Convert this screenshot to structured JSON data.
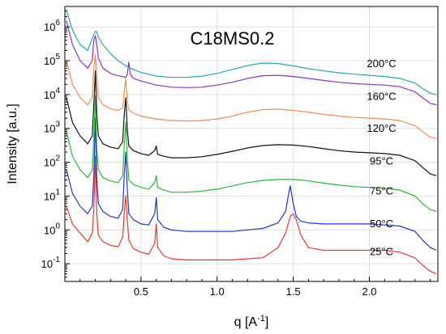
{
  "chart_data": {
    "type": "line",
    "title": "C18MS0.2",
    "xlabel": "q [A",
    "xlabel_sup": "-1",
    "xlabel_end": "]",
    "ylabel": "Intensity [a.u.]",
    "x_scale": "linear",
    "y_scale": "log",
    "xlim": [
      0,
      2.45
    ],
    "ylim": [
      0.03,
      4000000
    ],
    "grid": true,
    "x_ticks": [
      0.5,
      1.0,
      1.5,
      2.0
    ],
    "x_tick_labels": [
      "0.5",
      "1.0",
      "1.5",
      "2.0"
    ],
    "y_ticks": [
      0.1,
      1,
      10,
      100,
      1000,
      10000,
      100000,
      1000000
    ],
    "y_tick_bases": [
      "10",
      "10",
      "10",
      "10",
      "10",
      "10",
      "10",
      "10"
    ],
    "y_tick_exps": [
      "-1",
      "0",
      "1",
      "2",
      "3",
      "4",
      "5",
      "6"
    ],
    "series": [
      {
        "name": "25°C",
        "color": "#e8382e",
        "x": [
          0.01,
          0.05,
          0.1,
          0.15,
          0.18,
          0.19,
          0.2,
          0.21,
          0.22,
          0.25,
          0.3,
          0.35,
          0.38,
          0.39,
          0.4,
          0.41,
          0.42,
          0.45,
          0.5,
          0.55,
          0.59,
          0.6,
          0.61,
          0.65,
          0.7,
          0.8,
          0.9,
          1.0,
          1.1,
          1.2,
          1.3,
          1.4,
          1.45,
          1.48,
          1.5,
          1.52,
          1.55,
          1.6,
          1.7,
          1.8,
          1.9,
          2.0,
          2.1,
          2.2,
          2.3,
          2.35,
          2.4,
          2.44
        ],
        "y": [
          5,
          1.5,
          0.8,
          0.45,
          0.8,
          4,
          150,
          3,
          0.7,
          0.45,
          0.35,
          0.32,
          0.6,
          3,
          10,
          2,
          0.5,
          0.28,
          0.22,
          0.19,
          0.4,
          1.5,
          0.3,
          0.17,
          0.14,
          0.13,
          0.13,
          0.13,
          0.13,
          0.14,
          0.15,
          0.3,
          0.8,
          2.5,
          3,
          2,
          0.7,
          0.3,
          0.25,
          0.25,
          0.25,
          0.25,
          0.25,
          0.22,
          0.15,
          0.09,
          0.06,
          0.05
        ]
      },
      {
        "name": "50°C",
        "color": "#2233cc",
        "x": [
          0.01,
          0.05,
          0.1,
          0.15,
          0.18,
          0.19,
          0.2,
          0.21,
          0.22,
          0.25,
          0.3,
          0.35,
          0.38,
          0.39,
          0.4,
          0.41,
          0.42,
          0.45,
          0.5,
          0.55,
          0.59,
          0.6,
          0.61,
          0.65,
          0.7,
          0.8,
          0.9,
          1.0,
          1.1,
          1.2,
          1.3,
          1.4,
          1.45,
          1.47,
          1.48,
          1.5,
          1.52,
          1.55,
          1.6,
          1.7,
          1.8,
          1.9,
          2.0,
          2.1,
          2.2,
          2.3,
          2.35,
          2.4,
          2.44
        ],
        "y": [
          60,
          12,
          5,
          3,
          5,
          40,
          2000,
          30,
          6,
          3.5,
          2.5,
          2.2,
          4,
          40,
          200,
          15,
          3,
          2,
          1.5,
          1.4,
          3,
          9,
          2,
          1.2,
          1.0,
          0.9,
          0.9,
          0.9,
          0.9,
          1.0,
          1.1,
          1.6,
          3.5,
          12,
          20,
          6,
          2.5,
          1.8,
          1.6,
          1.5,
          1.5,
          1.5,
          1.5,
          1.4,
          1.3,
          0.9,
          0.5,
          0.3,
          0.25
        ]
      },
      {
        "name": "75°C",
        "color": "#22bb33",
        "x": [
          0.01,
          0.05,
          0.1,
          0.15,
          0.18,
          0.19,
          0.2,
          0.21,
          0.22,
          0.25,
          0.3,
          0.35,
          0.38,
          0.39,
          0.4,
          0.41,
          0.42,
          0.45,
          0.5,
          0.55,
          0.59,
          0.6,
          0.61,
          0.65,
          0.7,
          0.8,
          0.9,
          1.0,
          1.1,
          1.2,
          1.3,
          1.4,
          1.5,
          1.6,
          1.7,
          1.8,
          1.9,
          2.0,
          2.1,
          2.2,
          2.3,
          2.35,
          2.4,
          2.44
        ],
        "y": [
          800,
          150,
          60,
          35,
          60,
          500,
          9000,
          250,
          60,
          35,
          28,
          25,
          40,
          300,
          1500,
          120,
          30,
          22,
          18,
          16,
          25,
          40,
          18,
          15,
          13,
          13,
          14,
          16,
          20,
          25,
          29,
          31,
          31,
          28,
          24,
          21,
          19,
          18,
          17,
          15,
          10,
          6,
          4,
          3.5
        ]
      },
      {
        "name": "95°C",
        "color": "#111111",
        "x": [
          0.01,
          0.05,
          0.1,
          0.15,
          0.18,
          0.19,
          0.2,
          0.21,
          0.22,
          0.25,
          0.3,
          0.35,
          0.38,
          0.39,
          0.4,
          0.41,
          0.42,
          0.45,
          0.5,
          0.55,
          0.59,
          0.6,
          0.61,
          0.65,
          0.7,
          0.8,
          0.9,
          1.0,
          1.1,
          1.2,
          1.3,
          1.4,
          1.5,
          1.6,
          1.7,
          1.8,
          1.9,
          2.0,
          2.1,
          2.2,
          2.3,
          2.35,
          2.4,
          2.44
        ],
        "y": [
          8000,
          1500,
          600,
          350,
          600,
          5000,
          50000,
          2500,
          600,
          350,
          280,
          250,
          400,
          2500,
          8000,
          900,
          300,
          220,
          180,
          160,
          220,
          300,
          170,
          150,
          135,
          135,
          145,
          170,
          210,
          265,
          310,
          330,
          320,
          290,
          250,
          220,
          200,
          190,
          180,
          160,
          110,
          70,
          45,
          40
        ]
      },
      {
        "name": "120°C",
        "color": "#f28a55",
        "x": [
          0.01,
          0.05,
          0.1,
          0.15,
          0.18,
          0.19,
          0.2,
          0.21,
          0.22,
          0.25,
          0.3,
          0.35,
          0.38,
          0.39,
          0.4,
          0.41,
          0.42,
          0.45,
          0.5,
          0.6,
          0.7,
          0.8,
          0.9,
          1.0,
          1.1,
          1.2,
          1.3,
          1.4,
          1.5,
          1.6,
          1.7,
          1.8,
          1.9,
          2.0,
          2.1,
          2.2,
          2.3,
          2.35,
          2.4,
          2.44
        ],
        "y": [
          100000,
          20000,
          8000,
          5000,
          8000,
          60000,
          150000,
          30000,
          8000,
          5000,
          3800,
          3400,
          4000,
          12000,
          30000,
          6000,
          3500,
          2800,
          2300,
          1900,
          1700,
          1650,
          1700,
          1900,
          2300,
          3000,
          3600,
          3700,
          3400,
          3000,
          2600,
          2300,
          2100,
          2000,
          1900,
          1700,
          1200,
          800,
          550,
          500
        ]
      },
      {
        "name": "160°C",
        "color": "#8833cc",
        "x": [
          0.01,
          0.05,
          0.1,
          0.15,
          0.18,
          0.19,
          0.2,
          0.21,
          0.22,
          0.25,
          0.3,
          0.35,
          0.4,
          0.41,
          0.42,
          0.43,
          0.45,
          0.5,
          0.6,
          0.7,
          0.8,
          0.9,
          1.0,
          1.1,
          1.2,
          1.3,
          1.4,
          1.5,
          1.6,
          1.7,
          1.8,
          1.9,
          2.0,
          2.1,
          2.2,
          2.3,
          2.35,
          2.4,
          2.44
        ],
        "y": [
          1500000,
          300000,
          100000,
          60000,
          100000,
          400000,
          550000,
          300000,
          120000,
          60000,
          42000,
          36000,
          32000,
          40000,
          90000,
          40000,
          30000,
          25000,
          19000,
          16500,
          16000,
          16500,
          19000,
          23000,
          30000,
          36000,
          37000,
          34000,
          30000,
          26000,
          23000,
          21000,
          20000,
          19000,
          17000,
          12000,
          8000,
          5500,
          5000
        ]
      },
      {
        "name": "200°C",
        "color": "#22aaaa",
        "x": [
          0.01,
          0.05,
          0.1,
          0.15,
          0.18,
          0.2,
          0.21,
          0.22,
          0.25,
          0.3,
          0.35,
          0.4,
          0.45,
          0.5,
          0.6,
          0.7,
          0.8,
          0.9,
          1.0,
          1.1,
          1.2,
          1.3,
          1.4,
          1.5,
          1.6,
          1.7,
          1.8,
          1.9,
          2.0,
          2.1,
          2.2,
          2.3,
          2.35,
          2.4,
          2.44
        ],
        "y": [
          3000000,
          800000,
          300000,
          200000,
          450000,
          750000,
          700000,
          500000,
          300000,
          160000,
          100000,
          70000,
          55000,
          45000,
          35000,
          32000,
          32000,
          35000,
          42000,
          55000,
          72000,
          85000,
          82000,
          70000,
          58000,
          50000,
          44000,
          40000,
          37000,
          34000,
          30000,
          22000,
          15000,
          11000,
          10000
        ]
      }
    ],
    "series_label_x": 2.08,
    "series_label_y": [
      0.18,
      1.2,
      11,
      85,
      780,
      7000,
      65000
    ],
    "title_pos": [
      1.1,
      300000
    ]
  }
}
